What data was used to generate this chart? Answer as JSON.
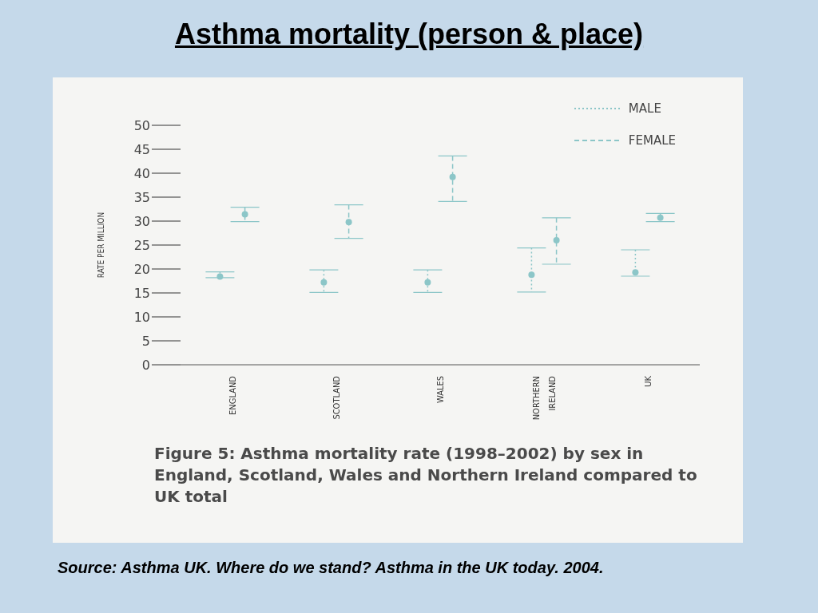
{
  "chart_data": {
    "type": "scatter",
    "title": "Asthma mortality (person & place)",
    "ylabel": "RATE PER MILLION",
    "categories": [
      "ENGLAND",
      "SCOTLAND",
      "WALES",
      "NORTHERN IRELAND",
      "UK"
    ],
    "series": [
      {
        "name": "MALE",
        "color": "#8cc6c8",
        "line_style": "dotted",
        "values": [
          18.4,
          17.2,
          17.2,
          18.8,
          19.3
        ],
        "errors": [
          [
            18.2,
            19.4
          ],
          [
            15.1,
            19.8
          ],
          [
            15.1,
            19.8
          ],
          [
            15.2,
            24.4
          ],
          [
            18.5,
            24.0
          ]
        ]
      },
      {
        "name": "FEMALE",
        "color": "#8cc6c8",
        "line_style": "dashed",
        "values": [
          31.4,
          29.8,
          39.2,
          26.0,
          30.7
        ],
        "errors": [
          [
            29.9,
            32.9
          ],
          [
            26.4,
            33.4
          ],
          [
            34.1,
            43.6
          ],
          [
            21.0,
            30.7
          ],
          [
            29.9,
            31.6
          ]
        ]
      }
    ],
    "ylim": [
      0,
      50
    ],
    "yticks": [
      0,
      5,
      10,
      15,
      20,
      25,
      30,
      35,
      40,
      45,
      50
    ],
    "grid": false,
    "legend": "top right",
    "marker": "circle",
    "annotations": [
      "Figure 5: Asthma mortality rate (1998–2002) by sex in England, Scotland, Wales and Northern Ireland compared to UK total",
      "Source: Asthma UK.  Where do we stand? Asthma in the UK today. 2004."
    ]
  }
}
